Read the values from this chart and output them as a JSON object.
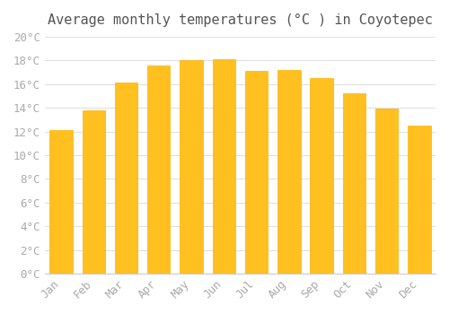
{
  "title": "Average monthly temperatures (°C ) in Coyotepec",
  "months": [
    "Jan",
    "Feb",
    "Mar",
    "Apr",
    "May",
    "Jun",
    "Jul",
    "Aug",
    "Sep",
    "Oct",
    "Nov",
    "Dec"
  ],
  "values": [
    12.1,
    13.8,
    16.1,
    17.6,
    18.0,
    18.1,
    17.1,
    17.2,
    16.5,
    15.2,
    13.9,
    12.5
  ],
  "bar_color_main": "#FFC020",
  "bar_color_edge": "#FFB000",
  "ylim": [
    0,
    20
  ],
  "ytick_step": 2,
  "background_color": "#FFFFFF",
  "grid_color": "#E0E0E0",
  "title_fontsize": 11,
  "tick_fontsize": 9,
  "font_family": "monospace"
}
